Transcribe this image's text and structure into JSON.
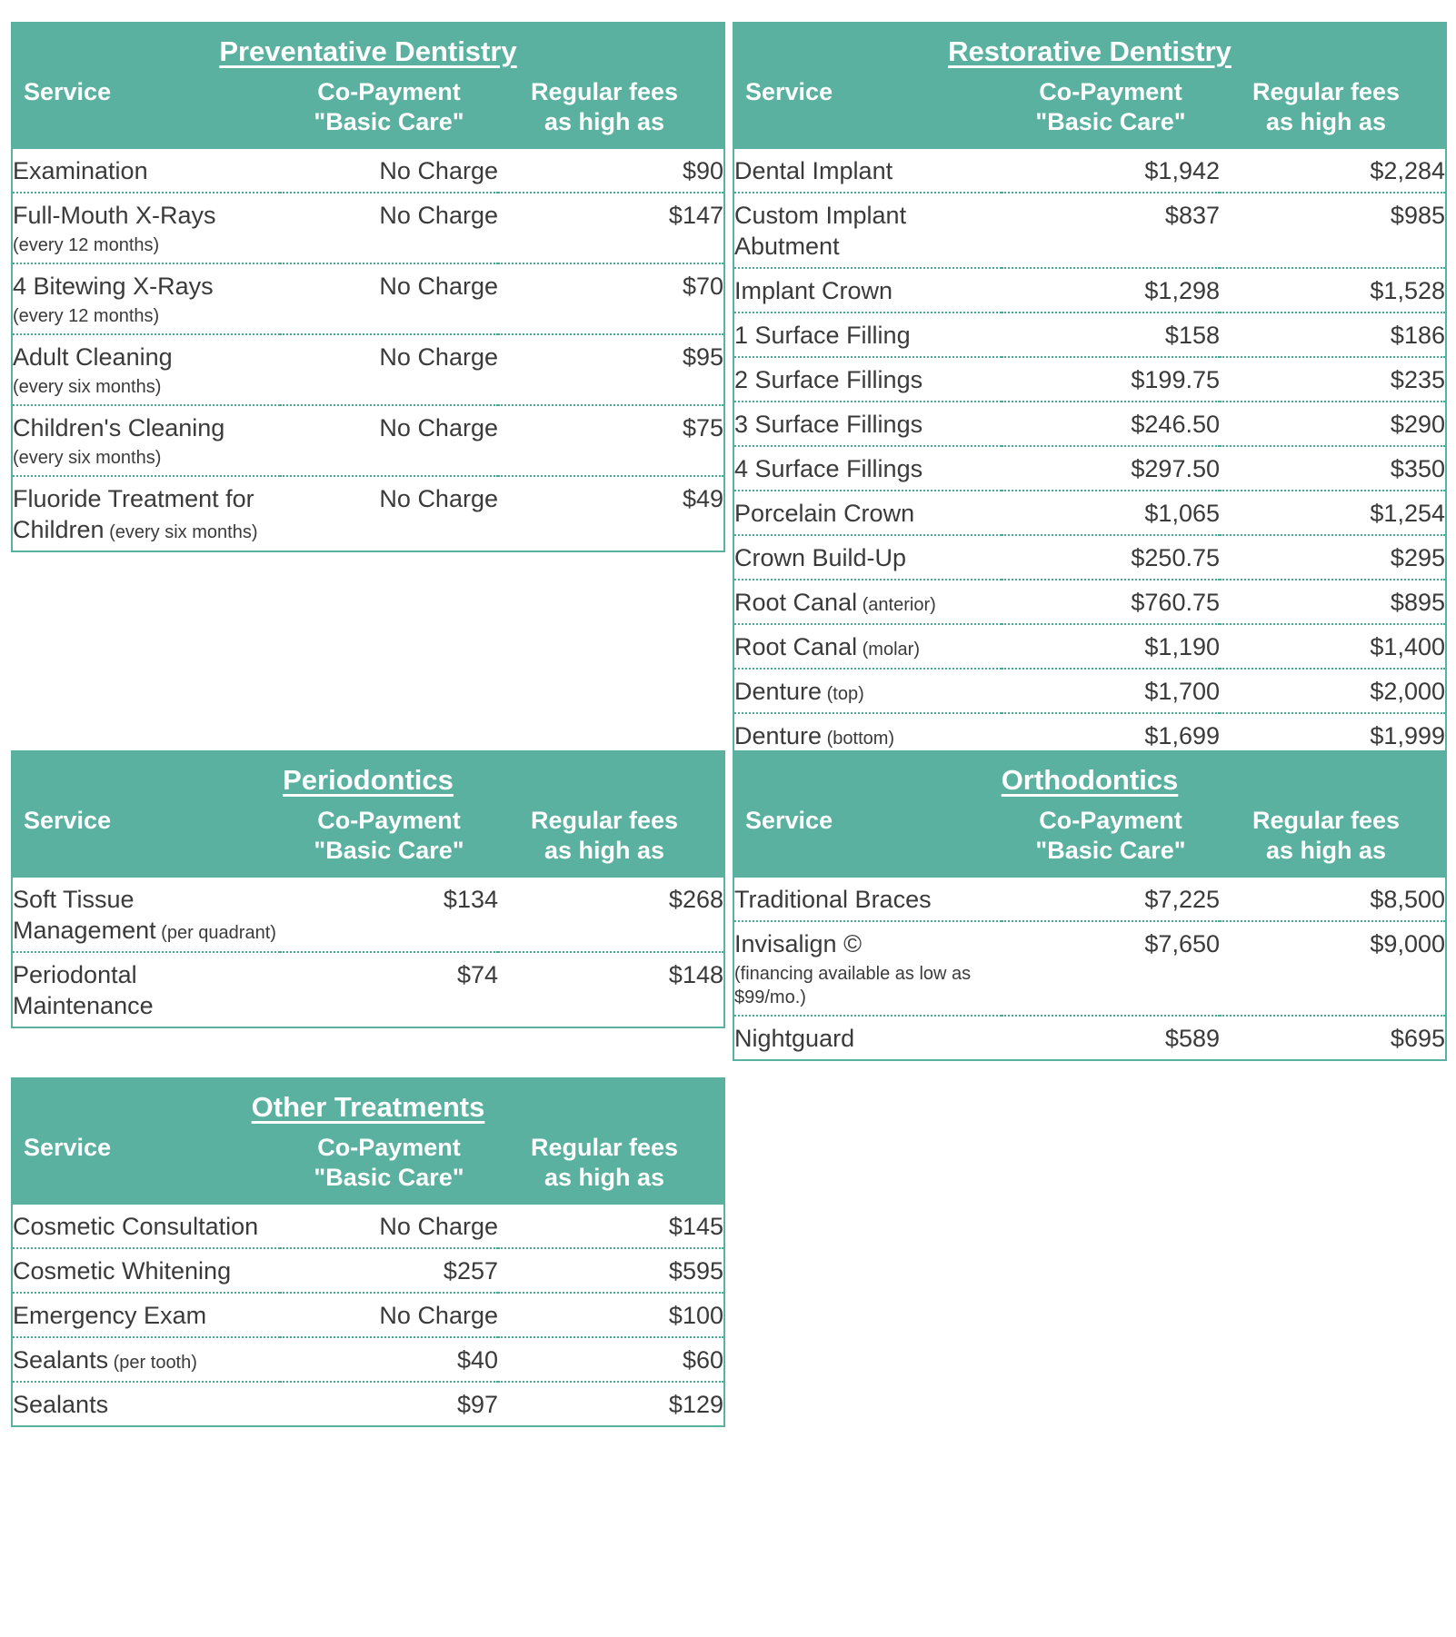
{
  "theme": {
    "accent_color": "#5ab1a0",
    "dotted_line_color": "#47a893",
    "text_color": "#3a3a3a",
    "header_text_color": "#ffffff",
    "background_color": "#ffffff"
  },
  "columns": {
    "service": "Service",
    "copay_line1": "Co-Payment",
    "copay_line2": "\"Basic Care\"",
    "fees_line1": "Regular fees",
    "fees_line2": "as high as"
  },
  "tables": [
    {
      "title": "Preventative Dentistry",
      "rows": [
        {
          "service": "Examination",
          "copay": "No Charge",
          "fee": "$90"
        },
        {
          "service": "Full-Mouth X-Rays",
          "note": "(every 12 months)",
          "note_layout": "block",
          "copay": "No Charge",
          "fee": "$147"
        },
        {
          "service": "4 Bitewing X-Rays",
          "note": "(every 12 months)",
          "note_layout": "block",
          "copay": "No Charge",
          "fee": "$70"
        },
        {
          "service": "Adult Cleaning",
          "note": "(every six months)",
          "note_layout": "block",
          "copay": "No Charge",
          "fee": "$95"
        },
        {
          "service": "Children's Cleaning",
          "note": "(every six months)",
          "note_layout": "block",
          "copay": "No Charge",
          "fee": "$75"
        },
        {
          "service": "Fluoride Treatment for Children",
          "note": "(every six months)",
          "note_layout": "inline",
          "copay": "No Charge",
          "fee": "$49"
        }
      ]
    },
    {
      "title": "Restorative Dentistry",
      "rows": [
        {
          "service": "Dental Implant",
          "copay": "$1,942",
          "fee": "$2,284"
        },
        {
          "service": "Custom Implant Abutment",
          "copay": "$837",
          "fee": "$985"
        },
        {
          "service": "Implant Crown",
          "copay": "$1,298",
          "fee": "$1,528"
        },
        {
          "service": "1 Surface Filling",
          "copay": "$158",
          "fee": "$186"
        },
        {
          "service": "2 Surface Fillings",
          "copay": "$199.75",
          "fee": "$235"
        },
        {
          "service": "3 Surface Fillings",
          "copay": "$246.50",
          "fee": "$290"
        },
        {
          "service": "4 Surface Fillings",
          "copay": "$297.50",
          "fee": "$350"
        },
        {
          "service": "Porcelain Crown",
          "copay": "$1,065",
          "fee": "$1,254"
        },
        {
          "service": "Crown Build-Up",
          "copay": "$250.75",
          "fee": "$295"
        },
        {
          "service": "Root Canal",
          "note": "(anterior)",
          "note_layout": "inline",
          "copay": "$760.75",
          "fee": "$895"
        },
        {
          "service": "Root Canal",
          "note": "(molar)",
          "note_layout": "inline",
          "copay": "$1,190",
          "fee": "$1,400"
        },
        {
          "service": "Denture",
          "note": "(top)",
          "note_layout": "inline",
          "copay": "$1,700",
          "fee": "$2,000"
        },
        {
          "service": "Denture",
          "note": "(bottom)",
          "note_layout": "inline",
          "copay": "$1,699",
          "fee": "$1,999"
        }
      ]
    },
    {
      "title": "Periodontics",
      "rows": [
        {
          "service": "Soft Tissue Management",
          "note": "(per quadrant)",
          "note_layout": "inline",
          "copay": "$134",
          "fee": "$268"
        },
        {
          "service": "Periodontal Maintenance",
          "copay": "$74",
          "fee": "$148"
        }
      ]
    },
    {
      "title": "Orthodontics",
      "rows": [
        {
          "service": "Traditional Braces",
          "copay": "$7,225",
          "fee": "$8,500"
        },
        {
          "service": "Invisalign ©",
          "note": "(financing available as low as $99/mo.)",
          "note_layout": "block",
          "copay": "$7,650",
          "fee": "$9,000"
        },
        {
          "service": "Nightguard",
          "copay": "$589",
          "fee": "$695"
        }
      ]
    },
    {
      "title": "Other Treatments",
      "rows": [
        {
          "service": "Cosmetic Consultation",
          "copay": "No Charge",
          "fee": "$145"
        },
        {
          "service": "Cosmetic Whitening",
          "copay": "$257",
          "fee": "$595"
        },
        {
          "service": "Emergency Exam",
          "copay": "No Charge",
          "fee": "$100"
        },
        {
          "service": "Sealants",
          "note": "(per tooth)",
          "note_layout": "inline",
          "copay": "$40",
          "fee": "$60"
        },
        {
          "service": "Sealants",
          "copay": "$97",
          "fee": "$129"
        }
      ]
    }
  ]
}
